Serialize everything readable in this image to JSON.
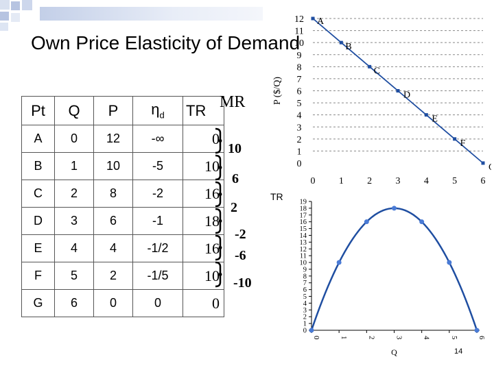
{
  "slide": {
    "title": "Own Price Elasticity of Demand",
    "page_number": "14"
  },
  "table": {
    "headers": {
      "pt": "Pt",
      "q": "Q",
      "p": "P",
      "eta": "η",
      "eta_sub": "d",
      "tr": "TR"
    },
    "rows": [
      {
        "pt": "A",
        "q": "0",
        "p": "12",
        "eta": "-∞",
        "tr": "0"
      },
      {
        "pt": "B",
        "q": "1",
        "p": "10",
        "eta": "-5",
        "tr": "10"
      },
      {
        "pt": "C",
        "q": "2",
        "p": "8",
        "eta": "-2",
        "tr": "16"
      },
      {
        "pt": "D",
        "q": "3",
        "p": "6",
        "eta": "-1",
        "tr": "18"
      },
      {
        "pt": "E",
        "q": "4",
        "p": "4",
        "eta": "-1/2",
        "tr": "16"
      },
      {
        "pt": "F",
        "q": "5",
        "p": "2",
        "eta": "-1/5",
        "tr": "10"
      },
      {
        "pt": "G",
        "q": "6",
        "p": "0",
        "eta": "0",
        "tr": "0"
      }
    ]
  },
  "marginal_revenue": {
    "label": "MR",
    "values": [
      "10",
      "6",
      "2",
      "-2",
      "-6",
      "-10"
    ]
  },
  "chart_data": [
    {
      "type": "line",
      "title": "",
      "xlabel": "",
      "ylabel": "P ($/Q)",
      "x_ticks": [
        "0",
        "1",
        "2",
        "3",
        "4",
        "5",
        "6"
      ],
      "y_ticks": [
        "0",
        "1",
        "2",
        "3",
        "4",
        "5",
        "6",
        "7",
        "8",
        "9",
        "10",
        "11",
        "12"
      ],
      "xlim": [
        0,
        6
      ],
      "ylim": [
        0,
        12
      ],
      "grid": "horizontal dashed",
      "series": [
        {
          "points": [
            {
              "label": "A",
              "x": 0,
              "y": 12
            },
            {
              "label": "B",
              "x": 1,
              "y": 10
            },
            {
              "label": "C",
              "x": 2,
              "y": 8
            },
            {
              "label": "D",
              "x": 3,
              "y": 6
            },
            {
              "label": "E",
              "x": 4,
              "y": 4
            },
            {
              "label": "F",
              "x": 5,
              "y": 2
            },
            {
              "label": "G",
              "x": 6,
              "y": 0
            }
          ]
        }
      ],
      "color": "#1f4ea1"
    },
    {
      "type": "line",
      "title": "TR",
      "xlabel": "Q",
      "ylabel": "",
      "x_ticks": [
        "0",
        "1",
        "2",
        "3",
        "4",
        "5",
        "6"
      ],
      "y_ticks": [
        "0",
        "1",
        "2",
        "3",
        "4",
        "5",
        "6",
        "7",
        "8",
        "9",
        "10",
        "11",
        "12",
        "13",
        "14",
        "15",
        "16",
        "17",
        "18",
        "19"
      ],
      "xlim": [
        0,
        6
      ],
      "ylim": [
        0,
        19
      ],
      "grid": "none",
      "series": [
        {
          "x": [
            0,
            1,
            2,
            3,
            4,
            5,
            6
          ],
          "y": [
            0,
            10,
            16,
            18,
            16,
            10,
            0
          ]
        }
      ],
      "color": "#1f4ea1",
      "marker_color": "#4a7bd6"
    }
  ],
  "colors": {
    "accent": "#1f4ea1",
    "deco_square": "#b7c4e1",
    "deco_square_light": "#dde5f3"
  }
}
